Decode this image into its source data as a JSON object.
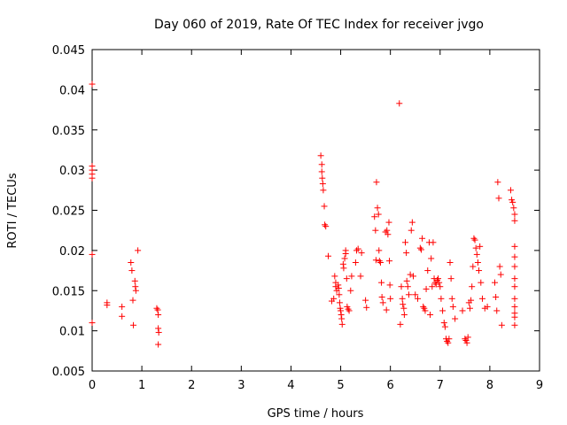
{
  "chart_data": {
    "type": "scatter",
    "title": "Day 060 of 2019, Rate Of TEC Index for receiver jvgo",
    "xlabel": "GPS time / hours",
    "ylabel": "ROTI / TECUs",
    "xlim": [
      0,
      9
    ],
    "ylim": [
      0.005,
      0.045
    ],
    "x_ticks": [
      0,
      1,
      2,
      3,
      4,
      5,
      6,
      7,
      8,
      9
    ],
    "y_ticks": [
      0.005,
      0.01,
      0.015,
      0.02,
      0.025,
      0.03,
      0.035,
      0.04,
      0.045
    ],
    "x_tick_labels": [
      "0",
      "1",
      "2",
      "3",
      "4",
      "5",
      "6",
      "7",
      "8",
      "9"
    ],
    "y_tick_labels": [
      "0.005",
      "0.01",
      "0.015",
      "0.02",
      "0.025",
      "0.03",
      "0.035",
      "0.04",
      "0.045"
    ],
    "marker": "+",
    "color": "#ff0000",
    "series": [
      {
        "name": "ROTI",
        "points": [
          [
            0.0,
            0.0407
          ],
          [
            0.0,
            0.0305
          ],
          [
            0.0,
            0.03
          ],
          [
            0.0,
            0.0295
          ],
          [
            0.0,
            0.029
          ],
          [
            0.0,
            0.0195
          ],
          [
            0.0,
            0.011
          ],
          [
            0.3,
            0.0135
          ],
          [
            0.3,
            0.0132
          ],
          [
            0.6,
            0.013
          ],
          [
            0.6,
            0.0118
          ],
          [
            0.78,
            0.0185
          ],
          [
            0.8,
            0.0175
          ],
          [
            0.82,
            0.0138
          ],
          [
            0.83,
            0.0107
          ],
          [
            0.86,
            0.0162
          ],
          [
            0.87,
            0.0155
          ],
          [
            0.88,
            0.015
          ],
          [
            0.92,
            0.02
          ],
          [
            1.3,
            0.0128
          ],
          [
            1.32,
            0.0126
          ],
          [
            1.33,
            0.012
          ],
          [
            1.33,
            0.0103
          ],
          [
            1.34,
            0.0098
          ],
          [
            1.33,
            0.0083
          ],
          [
            4.6,
            0.0318
          ],
          [
            4.62,
            0.0307
          ],
          [
            4.62,
            0.0298
          ],
          [
            4.63,
            0.029
          ],
          [
            4.64,
            0.0283
          ],
          [
            4.65,
            0.0275
          ],
          [
            4.67,
            0.0255
          ],
          [
            4.68,
            0.0232
          ],
          [
            4.7,
            0.023
          ],
          [
            4.75,
            0.0193
          ],
          [
            4.82,
            0.0137
          ],
          [
            4.86,
            0.014
          ],
          [
            4.88,
            0.0168
          ],
          [
            4.9,
            0.016
          ],
          [
            4.9,
            0.0155
          ],
          [
            4.92,
            0.015
          ],
          [
            4.95,
            0.0157
          ],
          [
            4.96,
            0.0153
          ],
          [
            4.97,
            0.0145
          ],
          [
            4.98,
            0.0135
          ],
          [
            4.99,
            0.0128
          ],
          [
            5.0,
            0.0125
          ],
          [
            5.01,
            0.012
          ],
          [
            5.02,
            0.0115
          ],
          [
            5.03,
            0.0108
          ],
          [
            5.05,
            0.0183
          ],
          [
            5.06,
            0.0178
          ],
          [
            5.08,
            0.019
          ],
          [
            5.1,
            0.0196
          ],
          [
            5.1,
            0.02
          ],
          [
            5.12,
            0.0165
          ],
          [
            5.13,
            0.013
          ],
          [
            5.15,
            0.0127
          ],
          [
            5.17,
            0.0125
          ],
          [
            5.2,
            0.015
          ],
          [
            5.22,
            0.0168
          ],
          [
            5.3,
            0.0185
          ],
          [
            5.32,
            0.02
          ],
          [
            5.35,
            0.0202
          ],
          [
            5.4,
            0.0168
          ],
          [
            5.42,
            0.0197
          ],
          [
            5.5,
            0.0138
          ],
          [
            5.52,
            0.0129
          ],
          [
            5.68,
            0.0242
          ],
          [
            5.7,
            0.0225
          ],
          [
            5.71,
            0.0188
          ],
          [
            5.72,
            0.0285
          ],
          [
            5.74,
            0.0253
          ],
          [
            5.76,
            0.0245
          ],
          [
            5.77,
            0.02
          ],
          [
            5.78,
            0.0187
          ],
          [
            5.8,
            0.0185
          ],
          [
            5.82,
            0.016
          ],
          [
            5.83,
            0.0142
          ],
          [
            5.85,
            0.0135
          ],
          [
            5.9,
            0.0223
          ],
          [
            5.93,
            0.0225
          ],
          [
            5.95,
            0.022
          ],
          [
            5.97,
            0.0235
          ],
          [
            5.98,
            0.0187
          ],
          [
            5.99,
            0.0157
          ],
          [
            6.0,
            0.014
          ],
          [
            5.92,
            0.0126
          ],
          [
            6.18,
            0.0383
          ],
          [
            6.2,
            0.0108
          ],
          [
            6.22,
            0.0155
          ],
          [
            6.24,
            0.014
          ],
          [
            6.25,
            0.0133
          ],
          [
            6.27,
            0.0128
          ],
          [
            6.28,
            0.012
          ],
          [
            6.3,
            0.021
          ],
          [
            6.32,
            0.0197
          ],
          [
            6.33,
            0.0162
          ],
          [
            6.35,
            0.0155
          ],
          [
            6.37,
            0.0145
          ],
          [
            6.4,
            0.017
          ],
          [
            6.42,
            0.0225
          ],
          [
            6.44,
            0.0235
          ],
          [
            6.46,
            0.0168
          ],
          [
            6.5,
            0.0145
          ],
          [
            6.55,
            0.014
          ],
          [
            6.6,
            0.0203
          ],
          [
            6.62,
            0.0201
          ],
          [
            6.64,
            0.0215
          ],
          [
            6.66,
            0.013
          ],
          [
            6.68,
            0.0128
          ],
          [
            6.7,
            0.0125
          ],
          [
            6.72,
            0.0152
          ],
          [
            6.75,
            0.0175
          ],
          [
            6.78,
            0.021
          ],
          [
            6.8,
            0.012
          ],
          [
            6.82,
            0.019
          ],
          [
            6.84,
            0.0155
          ],
          [
            6.86,
            0.021
          ],
          [
            6.88,
            0.0165
          ],
          [
            6.9,
            0.016
          ],
          [
            6.92,
            0.0158
          ],
          [
            6.94,
            0.0163
          ],
          [
            6.96,
            0.0165
          ],
          [
            6.98,
            0.016
          ],
          [
            7.0,
            0.0155
          ],
          [
            7.02,
            0.014
          ],
          [
            7.05,
            0.0125
          ],
          [
            7.08,
            0.011
          ],
          [
            7.1,
            0.0105
          ],
          [
            7.12,
            0.009
          ],
          [
            7.14,
            0.0087
          ],
          [
            7.16,
            0.0085
          ],
          [
            7.18,
            0.009
          ],
          [
            7.2,
            0.0185
          ],
          [
            7.22,
            0.0165
          ],
          [
            7.24,
            0.014
          ],
          [
            7.26,
            0.013
          ],
          [
            7.3,
            0.0115
          ],
          [
            7.45,
            0.0125
          ],
          [
            7.5,
            0.009
          ],
          [
            7.52,
            0.0088
          ],
          [
            7.54,
            0.0085
          ],
          [
            7.56,
            0.0092
          ],
          [
            7.58,
            0.0135
          ],
          [
            7.6,
            0.0128
          ],
          [
            7.62,
            0.0138
          ],
          [
            7.64,
            0.0155
          ],
          [
            7.66,
            0.018
          ],
          [
            7.68,
            0.0215
          ],
          [
            7.7,
            0.0213
          ],
          [
            7.72,
            0.0203
          ],
          [
            7.74,
            0.0195
          ],
          [
            7.76,
            0.0185
          ],
          [
            7.78,
            0.0175
          ],
          [
            7.8,
            0.0205
          ],
          [
            7.82,
            0.016
          ],
          [
            7.85,
            0.014
          ],
          [
            7.9,
            0.0128
          ],
          [
            7.95,
            0.013
          ],
          [
            8.1,
            0.016
          ],
          [
            8.12,
            0.0142
          ],
          [
            8.14,
            0.0125
          ],
          [
            8.16,
            0.0285
          ],
          [
            8.18,
            0.0265
          ],
          [
            8.2,
            0.018
          ],
          [
            8.22,
            0.017
          ],
          [
            8.24,
            0.0107
          ],
          [
            8.42,
            0.0275
          ],
          [
            8.44,
            0.0263
          ],
          [
            8.46,
            0.026
          ],
          [
            8.48,
            0.0253
          ],
          [
            8.5,
            0.0245
          ],
          [
            8.5,
            0.0237
          ],
          [
            8.5,
            0.0205
          ],
          [
            8.5,
            0.0192
          ],
          [
            8.5,
            0.018
          ],
          [
            8.5,
            0.0165
          ],
          [
            8.5,
            0.0155
          ],
          [
            8.5,
            0.014
          ],
          [
            8.5,
            0.013
          ],
          [
            8.5,
            0.0122
          ],
          [
            8.5,
            0.0117
          ],
          [
            8.5,
            0.0107
          ]
        ]
      }
    ]
  }
}
